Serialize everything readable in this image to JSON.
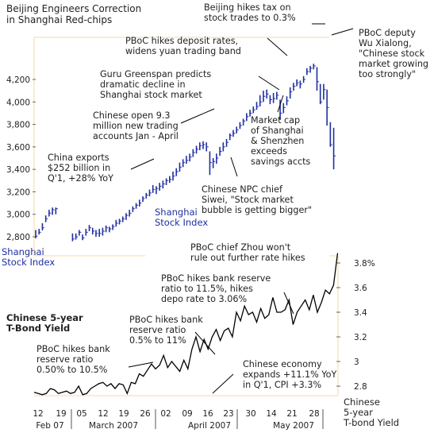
{
  "chart_data": [
    {
      "type": "bar",
      "subtype": "high-low",
      "title": "Beijing Engineers Correction\nin Shanghai Red-chips",
      "series_name": "Shanghai\nStock Index",
      "axis_label": "Shanghai\nStock Index",
      "y_axis_side": "left",
      "ylim": [
        2700,
        4350
      ],
      "yticks": [
        2800,
        3000,
        3200,
        3400,
        3600,
        3800,
        4000,
        4200
      ],
      "ytick_labels": [
        "2,800",
        "3,000",
        "3,200",
        "3,400",
        "3,600",
        "3,800",
        "4,000",
        "4,200"
      ],
      "ohlc": [
        [
          2.0,
          2806,
          2786,
          2860
        ],
        [
          3.0,
          2840,
          2820,
          2870
        ],
        [
          4.0,
          2880,
          2856,
          2920
        ],
        [
          5.0,
          2960,
          2930,
          2990
        ],
        [
          6.0,
          3010,
          2980,
          3040
        ],
        [
          7.0,
          3040,
          2995,
          3060
        ],
        [
          8.0,
          3050,
          3000,
          3060
        ],
        [
          13.0,
          2780,
          2760,
          2830
        ],
        [
          14.0,
          2800,
          2775,
          2830
        ],
        [
          15.0,
          2840,
          2810,
          2860
        ],
        [
          16.0,
          2790,
          2770,
          2820
        ],
        [
          17.0,
          2840,
          2810,
          2870
        ],
        [
          18.0,
          2880,
          2850,
          2905
        ],
        [
          19.0,
          2850,
          2820,
          2880
        ],
        [
          20.0,
          2830,
          2800,
          2860
        ],
        [
          21.0,
          2830,
          2800,
          2870
        ],
        [
          22.0,
          2850,
          2810,
          2880
        ],
        [
          23.0,
          2880,
          2840,
          2900
        ],
        [
          24.0,
          2870,
          2840,
          2890
        ],
        [
          25.0,
          2890,
          2860,
          2910
        ],
        [
          26.0,
          2920,
          2890,
          2950
        ],
        [
          27.0,
          2940,
          2910,
          2960
        ],
        [
          28.0,
          2960,
          2930,
          2980
        ],
        [
          29.0,
          2990,
          2950,
          3010
        ],
        [
          30.0,
          3010,
          2980,
          3040
        ],
        [
          31.0,
          3050,
          3020,
          3070
        ],
        [
          32.0,
          3080,
          3050,
          3100
        ],
        [
          33.0,
          3100,
          3070,
          3130
        ],
        [
          34.0,
          3140,
          3110,
          3160
        ],
        [
          35.0,
          3170,
          3140,
          3190
        ],
        [
          36.0,
          3190,
          3160,
          3220
        ],
        [
          37.0,
          3220,
          3190,
          3260
        ],
        [
          38.0,
          3230,
          3180,
          3250
        ],
        [
          39.0,
          3250,
          3210,
          3280
        ],
        [
          40.0,
          3270,
          3230,
          3300
        ],
        [
          41.0,
          3300,
          3260,
          3320
        ],
        [
          42.0,
          3310,
          3280,
          3340
        ],
        [
          43.0,
          3340,
          3300,
          3380
        ],
        [
          44.0,
          3380,
          3340,
          3410
        ],
        [
          45.0,
          3420,
          3380,
          3460
        ],
        [
          46.0,
          3460,
          3420,
          3490
        ],
        [
          47.0,
          3480,
          3450,
          3520
        ],
        [
          48.0,
          3510,
          3470,
          3540
        ],
        [
          49.0,
          3550,
          3510,
          3580
        ],
        [
          50.0,
          3580,
          3540,
          3610
        ],
        [
          51.0,
          3610,
          3570,
          3640
        ],
        [
          52.0,
          3620,
          3580,
          3650
        ],
        [
          53.0,
          3600,
          3560,
          3640
        ],
        [
          54.0,
          3460,
          3350,
          3560
        ],
        [
          55.0,
          3470,
          3410,
          3500
        ],
        [
          56.0,
          3500,
          3450,
          3540
        ],
        [
          57.0,
          3560,
          3520,
          3600
        ],
        [
          58.0,
          3600,
          3560,
          3640
        ],
        [
          59.0,
          3640,
          3600,
          3670
        ],
        [
          60.0,
          3700,
          3660,
          3720
        ],
        [
          61.0,
          3720,
          3690,
          3750
        ],
        [
          62.0,
          3750,
          3720,
          3780
        ],
        [
          63.0,
          3790,
          3760,
          3820
        ],
        [
          64.0,
          3830,
          3790,
          3850
        ],
        [
          65.0,
          3870,
          3830,
          3900
        ],
        [
          66.0,
          3900,
          3870,
          3930
        ],
        [
          67.0,
          3930,
          3900,
          3960
        ],
        [
          68.0,
          3960,
          3930,
          4000
        ],
        [
          69.0,
          4000,
          3960,
          4060
        ],
        [
          70.0,
          4050,
          4000,
          4100
        ],
        [
          71.0,
          4070,
          4030,
          4110
        ],
        [
          72.0,
          4020,
          3980,
          4060
        ],
        [
          73.0,
          4030,
          3990,
          4080
        ],
        [
          74.0,
          4060,
          4020,
          4090
        ],
        [
          75.0,
          3900,
          3840,
          4020
        ],
        [
          76.0,
          3950,
          3900,
          3990
        ],
        [
          77.0,
          4010,
          3970,
          4050
        ],
        [
          78.0,
          4090,
          4030,
          4130
        ],
        [
          79.0,
          4140,
          4100,
          4170
        ],
        [
          80.0,
          4170,
          4140,
          4200
        ],
        [
          81.0,
          4160,
          4120,
          4190
        ],
        [
          82.0,
          4200,
          4170,
          4230
        ],
        [
          83.0,
          4270,
          4240,
          4300
        ],
        [
          84.0,
          4300,
          4260,
          4320
        ],
        [
          85.0,
          4320,
          4290,
          4340
        ],
        [
          86.0,
          4180,
          4100,
          4310
        ],
        [
          87.0,
          4000,
          3980,
          4160
        ],
        [
          88.0,
          4110,
          4020,
          4160
        ],
        [
          89.0,
          3950,
          3790,
          4110
        ],
        [
          90.0,
          3620,
          3600,
          3820
        ],
        [
          91.0,
          3520,
          3400,
          3770
        ]
      ],
      "annotations": [
        "Beijing hikes tax on\nstock trades to 0.3%",
        "PBoC hikes deposit rates,\nwidens yuan trading band",
        "Guru Greenspan predicts\ndramatic decline in\nShanghai stock market",
        "Chinese open 9.3\nmillion new trading\naccounts Jan - April",
        "China exports\n$252 billion in\nQ'1, +28% YoY",
        "Chinese NPC chief\nSiwei, \"Stock market\nbubble is getting bigger\"",
        "Market cap\nof Shanghai\n& Shenzhen\nexceeds\nsavings accts",
        "PBoC deputy\nWu Xialong,\n\"Chinese stock\nmarket growing\ntoo strongly\""
      ]
    },
    {
      "type": "line",
      "title": "Chinese 5-year\nT-Bond Yield",
      "series_name": "Chinese\n5-year\nT-bond Yield",
      "axis_label": "Chinese\n5-year\nT-bond Yield",
      "y_axis_side": "right",
      "ylim": [
        2.66,
        3.88
      ],
      "yticks": [
        2.8,
        3.0,
        3.2,
        3.4,
        3.6,
        3.8
      ],
      "ytick_labels": [
        "2.8",
        "3",
        "3.2",
        "3.4",
        "3.6",
        "3.8%"
      ],
      "points": [
        [
          0,
          2.75
        ],
        [
          2,
          2.74
        ],
        [
          4,
          2.73
        ],
        [
          6,
          2.74
        ],
        [
          8,
          2.78
        ],
        [
          10,
          2.77
        ],
        [
          12,
          2.74
        ],
        [
          14,
          2.75
        ],
        [
          16,
          2.76
        ],
        [
          18,
          2.74
        ],
        [
          20,
          2.75
        ],
        [
          22,
          2.8
        ],
        [
          24,
          2.73
        ],
        [
          26,
          2.74
        ],
        [
          28,
          2.78
        ],
        [
          30,
          2.8
        ],
        [
          32,
          2.82
        ],
        [
          34,
          2.83
        ],
        [
          36,
          2.8
        ],
        [
          38,
          2.82
        ],
        [
          40,
          2.78
        ],
        [
          42,
          2.82
        ],
        [
          44,
          2.81
        ],
        [
          46,
          2.74
        ],
        [
          48,
          2.83
        ],
        [
          50,
          2.82
        ],
        [
          52,
          2.9
        ],
        [
          54,
          2.88
        ],
        [
          56,
          2.93
        ],
        [
          58,
          2.98
        ],
        [
          60,
          2.94
        ],
        [
          62,
          2.97
        ],
        [
          64,
          3.05
        ],
        [
          66,
          2.95
        ],
        [
          68,
          3.0
        ],
        [
          70,
          2.96
        ],
        [
          72,
          2.92
        ],
        [
          74,
          3.01
        ],
        [
          76,
          2.94
        ],
        [
          78,
          3.1
        ],
        [
          80,
          3.2
        ],
        [
          82,
          3.08
        ],
        [
          84,
          3.18
        ],
        [
          86,
          3.1
        ],
        [
          88,
          3.2
        ],
        [
          90,
          3.26
        ],
        [
          92,
          3.17
        ],
        [
          94,
          3.25
        ],
        [
          96,
          3.27
        ],
        [
          98,
          3.2
        ],
        [
          100,
          3.4
        ],
        [
          102,
          3.33
        ],
        [
          104,
          3.45
        ],
        [
          106,
          3.38
        ],
        [
          108,
          3.4
        ],
        [
          110,
          3.32
        ],
        [
          112,
          3.43
        ],
        [
          114,
          3.35
        ],
        [
          116,
          3.38
        ],
        [
          118,
          3.52
        ],
        [
          120,
          3.4
        ],
        [
          122,
          3.4
        ],
        [
          124,
          3.42
        ],
        [
          126,
          3.5
        ],
        [
          128,
          3.3
        ],
        [
          130,
          3.4
        ],
        [
          132,
          3.45
        ],
        [
          134,
          3.5
        ],
        [
          136,
          3.42
        ],
        [
          138,
          3.54
        ],
        [
          140,
          3.4
        ],
        [
          142,
          3.48
        ],
        [
          144,
          3.58
        ],
        [
          146,
          3.55
        ],
        [
          148,
          3.62
        ],
        [
          150,
          3.88
        ]
      ],
      "annotations": [
        "PBoC hikes bank\nreserve ratio\n0.50% to 10.5%",
        "PBoC hikes bank\nreserve ratio\n0.5% to 11%",
        "Chinese economy\nexpands +11.1% YoY\nin Q'1, CPI +3.3%",
        "PBoC hikes bank reserve\nratio to 11.5%, hikes\ndepo rate to 3.06%",
        "PBoC chief Zhou won't\nrule out further rate hikes"
      ]
    }
  ],
  "x_axis": {
    "day_labels": [
      "12",
      "19",
      "05",
      "12",
      "19",
      "26",
      "02",
      "09",
      "16",
      "23",
      "30",
      "14",
      "21",
      "28"
    ],
    "month_labels": [
      "Feb 07",
      "March 2007",
      "April 2007",
      "May 2007"
    ]
  },
  "colors": {
    "bars": "#1f2fa0",
    "line": "#000000",
    "text": "#222222",
    "guide": "#f5d9a8"
  }
}
